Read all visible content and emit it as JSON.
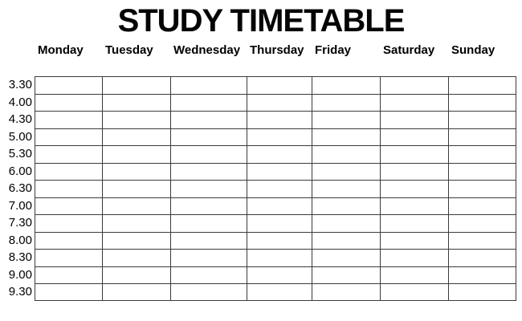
{
  "title": "STUDY TIMETABLE",
  "table": {
    "days": [
      "Monday",
      "Tuesday",
      "Wednesday",
      "Thursday",
      "Friday",
      "Saturday",
      "Sunday"
    ],
    "times": [
      "3.30",
      "4.00",
      "4.30",
      "5.00",
      "5.30",
      "6.00",
      "6.30",
      "7.00",
      "7.30",
      "8.00",
      "8.30",
      "9.00",
      "9.30"
    ],
    "cells_empty": true
  },
  "colors": {
    "background": "#ffffff",
    "text": "#000000",
    "grid_line": "#3b3b3b"
  }
}
